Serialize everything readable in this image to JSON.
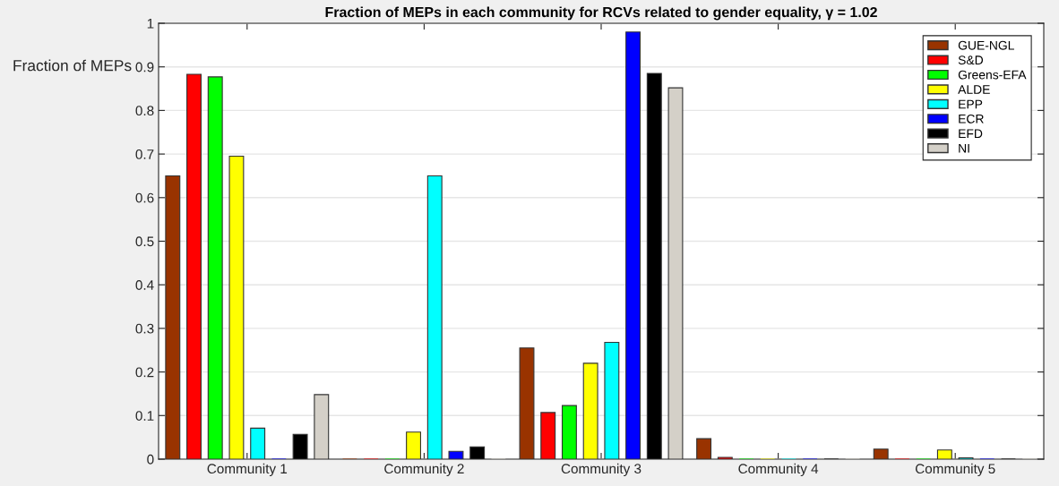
{
  "chart_data": {
    "type": "bar",
    "title": "Fraction of MEPs in each community for RCVs related to gender equality, γ = 1.02",
    "ylabel": "Fraction of MEPs",
    "categories": [
      "Community 1",
      "Community 2",
      "Community 3",
      "Community 4",
      "Community 5"
    ],
    "series": [
      {
        "name": "GUE-NGL",
        "color": "#993300",
        "values": [
          0.65,
          0,
          0.255,
          0.047,
          0.023
        ]
      },
      {
        "name": "S&D",
        "color": "#ff0000",
        "values": [
          0.883,
          0,
          0.107,
          0.004,
          0
        ]
      },
      {
        "name": "Greens-EFA",
        "color": "#00ff00",
        "values": [
          0.877,
          0,
          0.123,
          0,
          0
        ]
      },
      {
        "name": "ALDE",
        "color": "#ffff00",
        "values": [
          0.695,
          0.062,
          0.22,
          0,
          0.021
        ]
      },
      {
        "name": "EPP",
        "color": "#00ffff",
        "values": [
          0.071,
          0.65,
          0.268,
          0,
          0.003
        ]
      },
      {
        "name": "ECR",
        "color": "#0000ff",
        "values": [
          0,
          0.018,
          0.98,
          0,
          0
        ]
      },
      {
        "name": "EFD",
        "color": "#000000",
        "values": [
          0.057,
          0.028,
          0.885,
          0,
          0
        ]
      },
      {
        "name": "NI",
        "color": "#d4d0c8",
        "values": [
          0.148,
          0,
          0.852,
          0,
          0
        ]
      }
    ],
    "ylim": [
      0,
      1
    ],
    "yticks": [
      0,
      0.1,
      0.2,
      0.3,
      0.4,
      0.5,
      0.6,
      0.7,
      0.8,
      0.9,
      1
    ],
    "grid": "y",
    "legend": "top right"
  }
}
